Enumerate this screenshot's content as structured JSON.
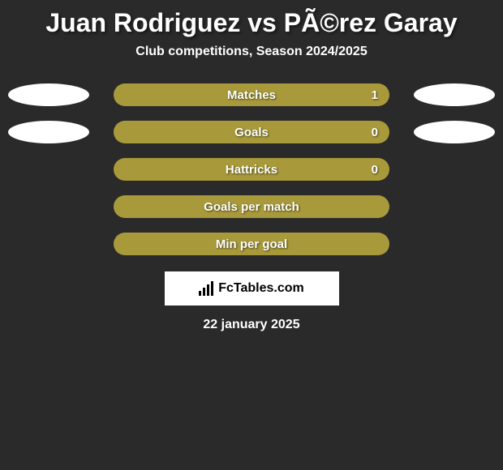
{
  "title": "Juan Rodriguez vs PÃ©rez Garay",
  "subtitle": "Club competitions, Season 2024/2025",
  "stats": [
    {
      "label": "Matches",
      "value": "1",
      "show_left_ellipse": true,
      "show_right_ellipse": true,
      "show_value": true
    },
    {
      "label": "Goals",
      "value": "0",
      "show_left_ellipse": true,
      "show_right_ellipse": true,
      "show_value": true
    },
    {
      "label": "Hattricks",
      "value": "0",
      "show_left_ellipse": false,
      "show_right_ellipse": false,
      "show_value": true
    },
    {
      "label": "Goals per match",
      "value": "",
      "show_left_ellipse": false,
      "show_right_ellipse": false,
      "show_value": false
    },
    {
      "label": "Min per goal",
      "value": "",
      "show_left_ellipse": false,
      "show_right_ellipse": false,
      "show_value": false
    }
  ],
  "logo_text": "FcTables.com",
  "date": "22 january 2025",
  "colors": {
    "background": "#2a2a2a",
    "bar": "#a89a3a",
    "ellipse": "#ffffff",
    "text": "#ffffff"
  },
  "logo_bars": [
    6,
    10,
    14,
    18
  ]
}
